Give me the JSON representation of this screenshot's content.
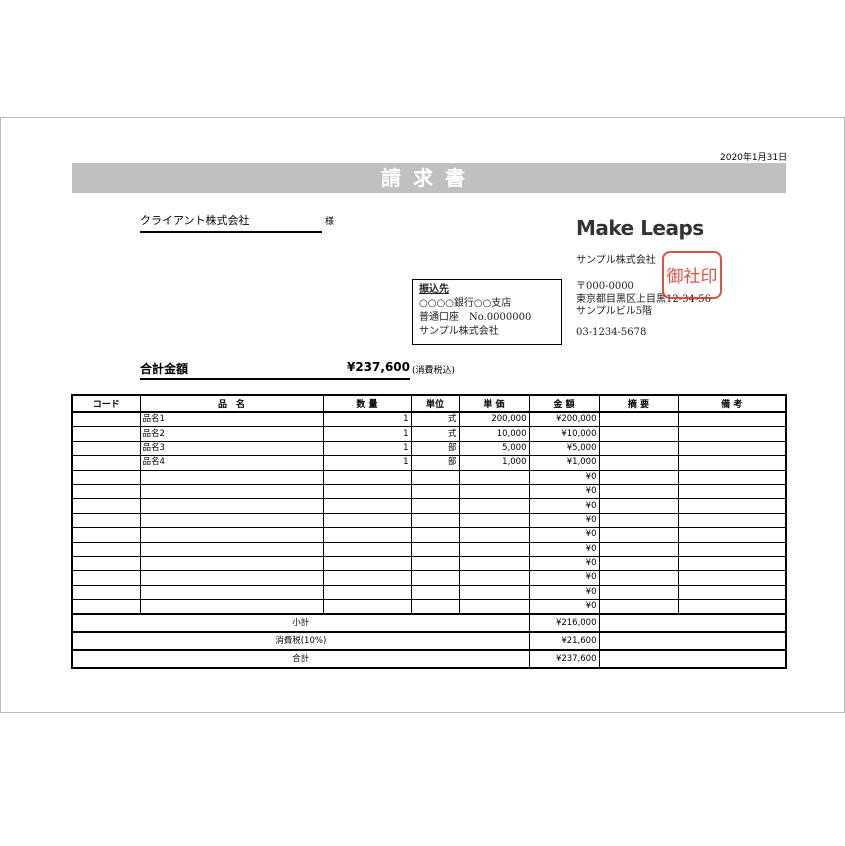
{
  "date": "2020年1月31日",
  "title": "請求書",
  "client": {
    "name": "クライアント株式会社",
    "honorific": "様"
  },
  "company": {
    "logo": "MakeLeaps",
    "name": "サンプル株式会社",
    "postal": "〒000-0000",
    "address1": "東京都目黒区上目黒12-34-56",
    "address2": "サンプルビル5階",
    "phone": "03-1234-5678",
    "stamp": "御社印"
  },
  "bank": {
    "heading": "振込先",
    "line1": "○○○○銀行○○支店",
    "line2": "普通口座　No.0000000",
    "line3": "サンプル株式会社"
  },
  "total": {
    "label": "合計金額",
    "amount": "¥237,600",
    "note": "(消費税込)"
  },
  "table": {
    "headers": [
      "コード",
      "品　名",
      "数 量",
      "単位",
      "単 価",
      "金 額",
      "摘 要",
      "備 考"
    ],
    "rows": [
      {
        "code": "",
        "name": "品名1",
        "qty": "1",
        "unit": "式",
        "price": "200,000",
        "amount": "¥200,000"
      },
      {
        "code": "",
        "name": "品名2",
        "qty": "1",
        "unit": "式",
        "price": "10,000",
        "amount": "¥10,000"
      },
      {
        "code": "",
        "name": "品名3",
        "qty": "1",
        "unit": "部",
        "price": "5,000",
        "amount": "¥5,000"
      },
      {
        "code": "",
        "name": "品名4",
        "qty": "1",
        "unit": "部",
        "price": "1,000",
        "amount": "¥1,000"
      },
      {
        "amount": "¥0"
      },
      {
        "amount": "¥0"
      },
      {
        "amount": "¥0"
      },
      {
        "amount": "¥0"
      },
      {
        "amount": "¥0"
      },
      {
        "amount": "¥0"
      },
      {
        "amount": "¥0"
      },
      {
        "amount": "¥0"
      },
      {
        "amount": "¥0"
      },
      {
        "amount": "¥0"
      }
    ],
    "summary": [
      {
        "label": "小計",
        "amount": "¥216,000"
      },
      {
        "label": "消費税(10%)",
        "amount": "¥21,600"
      },
      {
        "label": "合計",
        "amount": "¥237,600"
      }
    ]
  }
}
